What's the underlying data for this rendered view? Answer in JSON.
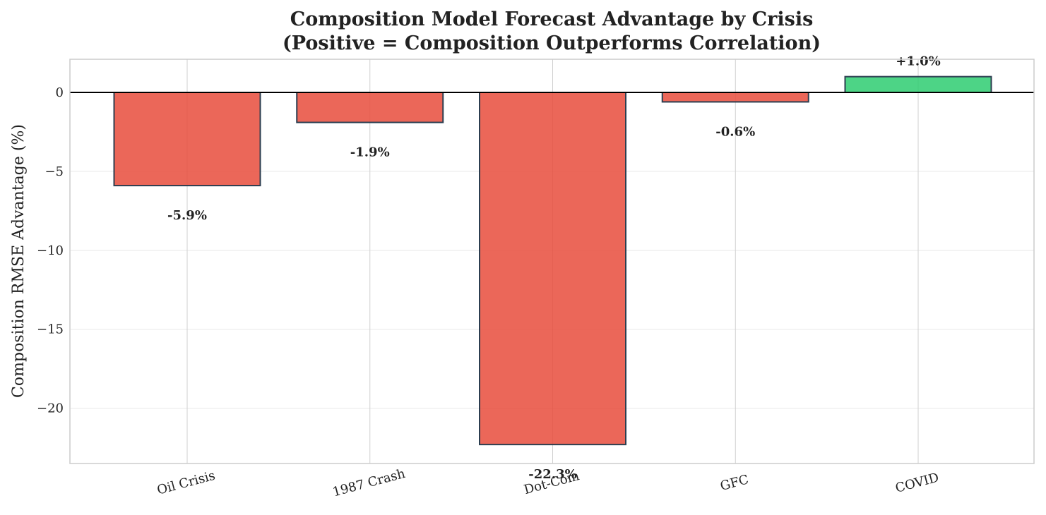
{
  "chart_data": {
    "type": "bar",
    "title": "Composition Model Forecast Advantage by Crisis",
    "subtitle": "(Positive = Composition Outperforms Correlation)",
    "xlabel": "",
    "ylabel": "Composition RMSE Advantage (%)",
    "categories": [
      "Oil Crisis",
      "1987 Crash",
      "Dot-Com",
      "GFC",
      "COVID"
    ],
    "values": [
      -5.9,
      -1.9,
      -22.3,
      -0.6,
      1.0
    ],
    "value_labels": [
      "-5.9%",
      "-1.9%",
      "-22.3%",
      "-0.6%",
      "+1.0%"
    ],
    "ylim": [
      -23.5,
      2.1
    ],
    "yticks": [
      0,
      -5,
      -10,
      -15,
      -20
    ],
    "ytick_labels": [
      "0",
      "−5",
      "−10",
      "−15",
      "−20"
    ],
    "grid": true,
    "colors": {
      "negative": "#e74c3c",
      "positive": "#2ecc71",
      "edge": "#2c3e50",
      "zero_line": "#000000",
      "grid": "#e8e8e8",
      "frame": "#cccccc"
    }
  }
}
